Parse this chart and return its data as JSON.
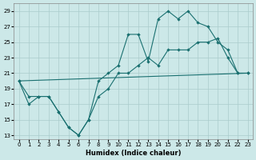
{
  "xlabel": "Humidex (Indice chaleur)",
  "background_color": "#cce8e8",
  "grid_color": "#aacccc",
  "line_color": "#1a7070",
  "xlim": [
    -0.5,
    23.5
  ],
  "ylim": [
    12.5,
    30.0
  ],
  "yticks": [
    13,
    15,
    17,
    19,
    21,
    23,
    25,
    27,
    29
  ],
  "xticks": [
    0,
    1,
    2,
    3,
    4,
    5,
    6,
    7,
    8,
    9,
    10,
    11,
    12,
    13,
    14,
    15,
    16,
    17,
    18,
    19,
    20,
    21,
    22,
    23
  ],
  "line1_x": [
    0,
    1,
    2,
    3,
    4,
    5,
    6,
    7,
    8,
    9,
    10,
    11,
    12,
    13,
    14,
    15,
    16,
    17,
    18,
    19,
    20,
    21,
    22,
    23
  ],
  "line1_y": [
    20,
    17,
    18,
    18,
    16,
    14,
    13,
    15,
    20,
    21,
    22,
    26,
    26,
    22.5,
    28,
    29,
    28,
    29,
    27.5,
    27,
    25,
    24,
    21,
    21
  ],
  "line2_x": [
    0,
    1,
    2,
    3,
    4,
    5,
    6,
    7,
    8,
    9,
    10,
    11,
    12,
    13,
    14,
    15,
    16,
    17,
    18,
    19,
    20,
    21,
    22,
    23
  ],
  "line2_y": [
    20,
    18,
    18,
    18,
    16,
    14,
    13,
    15,
    18,
    19,
    21,
    21,
    22,
    23,
    22,
    24,
    24,
    24,
    25,
    25,
    25.5,
    23,
    21,
    21
  ],
  "line3_x": [
    0,
    23
  ],
  "line3_y": [
    20,
    21
  ]
}
